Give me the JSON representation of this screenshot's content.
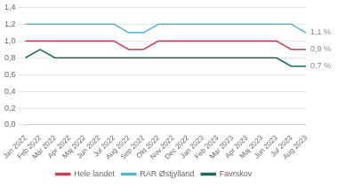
{
  "chart_data": {
    "type": "line",
    "categories": [
      "Jan 2022",
      "Feb 2022",
      "Mar 2022",
      "Apr 2022",
      "Maj 2022",
      "Jun 2022",
      "Jul 2022",
      "Aug 2022",
      "Sep 2022",
      "Okt 2022",
      "Nov 2022",
      "Dec 2022",
      "Jan 2023",
      "Feb 2023",
      "Mar 2023",
      "Apr 2023",
      "Maj 2023",
      "Jun 2023",
      "Jul 2023",
      "Aug 2023"
    ],
    "series": [
      {
        "name": "Hele landet",
        "color": "#d63b55",
        "values": [
          1.0,
          1.0,
          1.0,
          1.0,
          1.0,
          1.0,
          1.0,
          0.9,
          0.9,
          1.0,
          1.0,
          1.0,
          1.0,
          1.0,
          1.0,
          1.0,
          1.0,
          1.0,
          0.9,
          0.9
        ]
      },
      {
        "name": "RAR Østjylland",
        "color": "#4db8d4",
        "values": [
          1.2,
          1.2,
          1.2,
          1.2,
          1.2,
          1.2,
          1.2,
          1.1,
          1.1,
          1.2,
          1.2,
          1.2,
          1.2,
          1.2,
          1.2,
          1.2,
          1.2,
          1.2,
          1.2,
          1.1
        ]
      },
      {
        "name": "Favrskov",
        "color": "#1a6b5a",
        "values": [
          0.8,
          0.9,
          0.8,
          0.8,
          0.8,
          0.8,
          0.8,
          0.8,
          0.8,
          0.8,
          0.8,
          0.8,
          0.8,
          0.8,
          0.8,
          0.8,
          0.8,
          0.8,
          0.7,
          0.7
        ]
      }
    ],
    "ylim": [
      0.0,
      1.4
    ],
    "yticks": [
      {
        "value": 0.0,
        "label": "0,0"
      },
      {
        "value": 0.2,
        "label": "0,2"
      },
      {
        "value": 0.4,
        "label": "0,4"
      },
      {
        "value": 0.6,
        "label": "0,6"
      },
      {
        "value": 0.8,
        "label": "0,8"
      },
      {
        "value": 1.0,
        "label": "1,0"
      },
      {
        "value": 1.2,
        "label": "1,2"
      },
      {
        "value": 1.4,
        "label": "1,4"
      }
    ],
    "annotations": [
      {
        "text": "1,1 %",
        "series": "RAR Østjylland"
      },
      {
        "text": "0,9 %",
        "series": "Hele landet"
      },
      {
        "text": "0,7 %",
        "series": "Favrskov"
      }
    ],
    "grid": true,
    "legend": "bottom"
  }
}
